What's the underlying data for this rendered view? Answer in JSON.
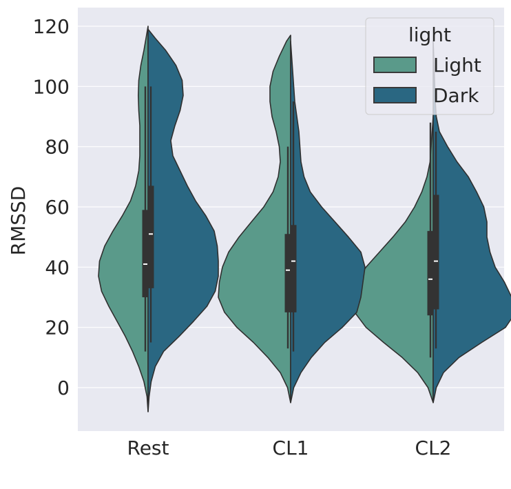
{
  "chart_data": {
    "type": "violin",
    "split": true,
    "categories": [
      "Rest",
      "CL1",
      "CL2"
    ],
    "ylabel": "RMSSD",
    "xlabel": "",
    "ylim": [
      -15,
      125
    ],
    "yticks": [
      0,
      20,
      40,
      60,
      80,
      100,
      120
    ],
    "grid": true,
    "legend": {
      "title": "light",
      "position": "top-right"
    },
    "series": [
      {
        "name": "Light",
        "color": "#5a9a8a",
        "groups": [
          {
            "category": "Rest",
            "profile": [
              [
                -8,
                0.0
              ],
              [
                -3,
                0.01
              ],
              [
                2,
                0.04
              ],
              [
                7,
                0.09
              ],
              [
                12,
                0.15
              ],
              [
                17,
                0.22
              ],
              [
                22,
                0.3
              ],
              [
                27,
                0.38
              ],
              [
                32,
                0.45
              ],
              [
                37,
                0.48
              ],
              [
                42,
                0.47
              ],
              [
                47,
                0.42
              ],
              [
                52,
                0.34
              ],
              [
                57,
                0.25
              ],
              [
                62,
                0.17
              ],
              [
                67,
                0.12
              ],
              [
                72,
                0.09
              ],
              [
                77,
                0.08
              ],
              [
                82,
                0.08
              ],
              [
                87,
                0.08
              ],
              [
                92,
                0.09
              ],
              [
                97,
                0.095
              ],
              [
                102,
                0.09
              ],
              [
                107,
                0.07
              ],
              [
                112,
                0.04
              ],
              [
                116,
                0.02
              ],
              [
                120,
                0.0
              ]
            ],
            "whisker": [
              12,
              100
            ],
            "q1": 30,
            "q3": 59,
            "median": 41
          },
          {
            "category": "CL1",
            "profile": [
              [
                -5,
                0.0
              ],
              [
                0,
                0.03
              ],
              [
                5,
                0.1
              ],
              [
                10,
                0.22
              ],
              [
                15,
                0.36
              ],
              [
                20,
                0.52
              ],
              [
                25,
                0.64
              ],
              [
                30,
                0.7
              ],
              [
                35,
                0.69
              ],
              [
                40,
                0.66
              ],
              [
                45,
                0.6
              ],
              [
                50,
                0.5
              ],
              [
                55,
                0.38
              ],
              [
                60,
                0.26
              ],
              [
                65,
                0.17
              ],
              [
                70,
                0.12
              ],
              [
                75,
                0.1
              ],
              [
                80,
                0.11
              ],
              [
                85,
                0.14
              ],
              [
                90,
                0.18
              ],
              [
                95,
                0.2
              ],
              [
                100,
                0.2
              ],
              [
                105,
                0.17
              ],
              [
                110,
                0.11
              ],
              [
                115,
                0.04
              ],
              [
                117,
                0.0
              ]
            ],
            "whisker": [
              13,
              80
            ],
            "q1": 25,
            "q3": 51,
            "median": 39
          },
          {
            "category": "CL2",
            "profile": [
              [
                -5,
                0.0
              ],
              [
                0,
                0.05
              ],
              [
                5,
                0.15
              ],
              [
                10,
                0.3
              ],
              [
                15,
                0.48
              ],
              [
                20,
                0.65
              ],
              [
                25,
                0.76
              ],
              [
                30,
                0.79
              ],
              [
                35,
                0.75
              ],
              [
                40,
                0.65
              ],
              [
                45,
                0.52
              ],
              [
                50,
                0.39
              ],
              [
                55,
                0.27
              ],
              [
                60,
                0.18
              ],
              [
                65,
                0.11
              ],
              [
                70,
                0.06
              ],
              [
                75,
                0.03
              ],
              [
                80,
                0.02
              ],
              [
                85,
                0.01
              ],
              [
                90,
                0.0
              ]
            ],
            "whisker": [
              10,
              88
            ],
            "q1": 24,
            "q3": 52,
            "median": 36
          }
        ]
      },
      {
        "name": "Dark",
        "color": "#2a6782",
        "groups": [
          {
            "category": "Rest",
            "profile": [
              [
                -8,
                0.0
              ],
              [
                -3,
                0.01
              ],
              [
                2,
                0.03
              ],
              [
                7,
                0.07
              ],
              [
                12,
                0.15
              ],
              [
                17,
                0.3
              ],
              [
                22,
                0.44
              ],
              [
                27,
                0.57
              ],
              [
                32,
                0.65
              ],
              [
                37,
                0.68
              ],
              [
                42,
                0.68
              ],
              [
                47,
                0.67
              ],
              [
                52,
                0.64
              ],
              [
                57,
                0.56
              ],
              [
                62,
                0.46
              ],
              [
                67,
                0.38
              ],
              [
                72,
                0.31
              ],
              [
                77,
                0.24
              ],
              [
                82,
                0.22
              ],
              [
                87,
                0.26
              ],
              [
                92,
                0.31
              ],
              [
                97,
                0.34
              ],
              [
                102,
                0.33
              ],
              [
                107,
                0.27
              ],
              [
                112,
                0.17
              ],
              [
                116,
                0.07
              ],
              [
                119,
                0.0
              ]
            ],
            "whisker": [
              15,
              100
            ],
            "q1": 33,
            "q3": 67,
            "median": 51
          },
          {
            "category": "CL1",
            "profile": [
              [
                -5,
                0.0
              ],
              [
                0,
                0.03
              ],
              [
                5,
                0.1
              ],
              [
                10,
                0.2
              ],
              [
                15,
                0.33
              ],
              [
                20,
                0.5
              ],
              [
                25,
                0.64
              ],
              [
                30,
                0.68
              ],
              [
                35,
                0.7
              ],
              [
                40,
                0.72
              ],
              [
                45,
                0.68
              ],
              [
                50,
                0.56
              ],
              [
                55,
                0.43
              ],
              [
                60,
                0.3
              ],
              [
                65,
                0.19
              ],
              [
                70,
                0.13
              ],
              [
                75,
                0.1
              ],
              [
                80,
                0.09
              ],
              [
                85,
                0.08
              ],
              [
                90,
                0.06
              ],
              [
                95,
                0.04
              ],
              [
                100,
                0.03
              ],
              [
                105,
                0.02
              ],
              [
                110,
                0.01
              ],
              [
                115,
                0.0
              ]
            ],
            "whisker": [
              12,
              95
            ],
            "q1": 25,
            "q3": 54,
            "median": 42
          },
          {
            "category": "CL2",
            "profile": [
              [
                -5,
                0.0
              ],
              [
                0,
                0.03
              ],
              [
                5,
                0.1
              ],
              [
                10,
                0.25
              ],
              [
                15,
                0.47
              ],
              [
                20,
                0.7
              ],
              [
                25,
                0.8
              ],
              [
                30,
                0.76
              ],
              [
                35,
                0.69
              ],
              [
                40,
                0.6
              ],
              [
                45,
                0.55
              ],
              [
                50,
                0.52
              ],
              [
                55,
                0.52
              ],
              [
                60,
                0.49
              ],
              [
                65,
                0.42
              ],
              [
                70,
                0.34
              ],
              [
                75,
                0.23
              ],
              [
                80,
                0.14
              ],
              [
                85,
                0.06
              ],
              [
                90,
                0.03
              ],
              [
                95,
                0.02
              ],
              [
                100,
                0.015
              ],
              [
                105,
                0.01
              ],
              [
                110,
                0.005
              ],
              [
                115,
                0.0
              ]
            ],
            "whisker": [
              13,
              85
            ],
            "q1": 26,
            "q3": 64,
            "median": 42
          }
        ]
      }
    ]
  }
}
